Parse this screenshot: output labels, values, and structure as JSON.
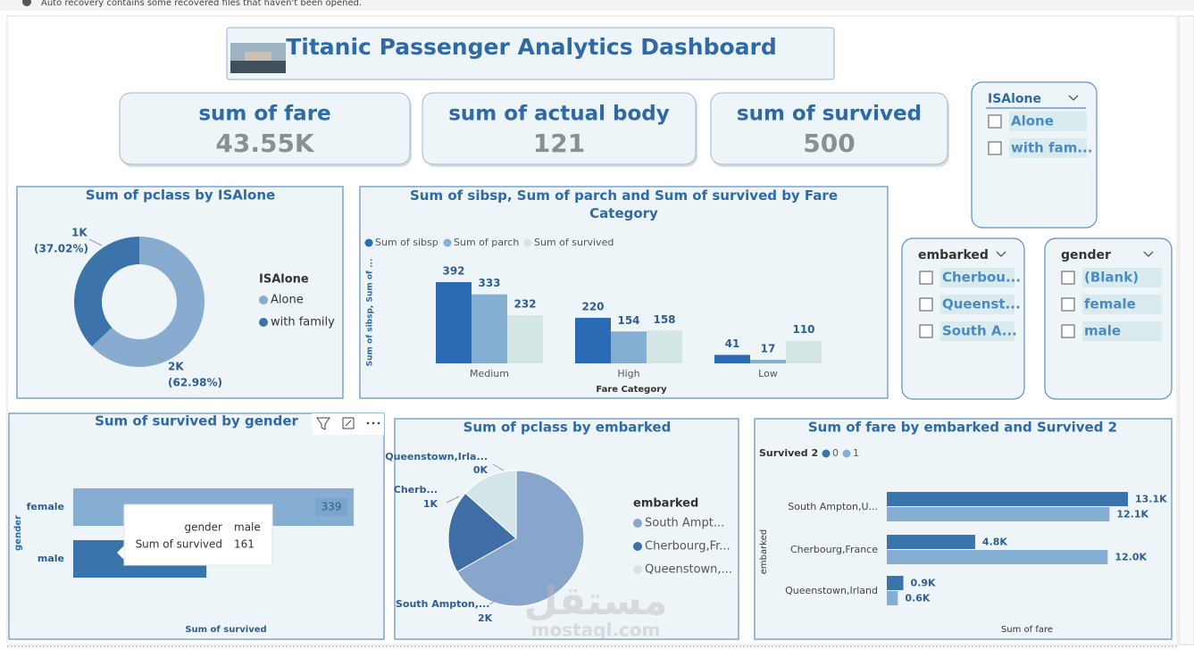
{
  "notification": "Auto recovery contains some recovered files that haven't been opened.",
  "header": {
    "title": "Titanic Passenger Analytics Dashboard"
  },
  "cards": [
    {
      "label": "sum of fare",
      "value": "43.55K"
    },
    {
      "label": "sum of actual body",
      "value": "121"
    },
    {
      "label": "sum of survived",
      "value": "500"
    }
  ],
  "slicers": [
    {
      "title": "ISAlone",
      "items": [
        "Alone",
        "with fam..."
      ]
    },
    {
      "title": "embarked",
      "items": [
        "Cherbou...",
        "Queenst...",
        "South A..."
      ]
    },
    {
      "title": "gender",
      "items": [
        "(Blank)",
        "female",
        "male"
      ]
    }
  ],
  "chart_data": [
    {
      "type": "donut",
      "title": "Sum of pclass by ISAlone",
      "legend_title": "ISAlone",
      "categories": [
        "Alone",
        "with family"
      ],
      "values": [
        62.98,
        37.02
      ],
      "value_labels": [
        "(62.98%)",
        "(37.02%)"
      ],
      "amount_labels": [
        "2K",
        "1K"
      ],
      "colors": [
        "#88acd0",
        "#3c73aa"
      ]
    },
    {
      "type": "bar",
      "title": "Sum of sibsp, Sum of parch and Sum of survived by Fare Category",
      "categories": [
        "Medium",
        "High",
        "Low"
      ],
      "series": [
        {
          "name": "Sum of sibsp",
          "color": "#2a6bb3",
          "values": [
            392,
            220,
            41
          ]
        },
        {
          "name": "Sum of parch",
          "color": "#85aed3",
          "values": [
            333,
            154,
            17
          ]
        },
        {
          "name": "Sum of survived",
          "color": "#d3e5e5",
          "values": [
            232,
            158,
            110
          ]
        }
      ],
      "ylim": [
        0,
        420
      ],
      "xlabel": "Fare Category",
      "ylabel": "Sum of sibsp, Sum of ..."
    },
    {
      "type": "hbar",
      "title": "Sum of survived by gender",
      "categories": [
        "female",
        "male"
      ],
      "values": [
        339,
        161
      ],
      "colors": [
        "#86aed2",
        "#3a74ad"
      ],
      "xlim": [
        0,
        340
      ],
      "xlabel": "Sum of survived",
      "ylabel": "gender"
    },
    {
      "type": "pie",
      "title": "Sum of pclass by embarked",
      "legend_title": "embarked",
      "categories": [
        "South Ampton,...",
        "Cherb...",
        "Queenstown,Irla..."
      ],
      "legend_labels": [
        "South Ampt...",
        "Cherbourg,Fr...",
        "Queenstown,..."
      ],
      "values": [
        1890,
        560,
        380
      ],
      "value_labels": [
        "2K",
        "1K",
        "0K"
      ],
      "colors": [
        "#88a6cb",
        "#3f6ea6",
        "#d3e5e8"
      ]
    },
    {
      "type": "hbar-grouped",
      "title": "Sum of fare by embarked and Survived 2",
      "legend_title": "Survived 2",
      "categories": [
        "South Ampton,U...",
        "Cherbourg,France",
        "Queenstown,Irland"
      ],
      "series": [
        {
          "name": "0",
          "color": "#3a74ad",
          "values": [
            13100,
            4800,
            900
          ],
          "value_labels": [
            "13.1K",
            "4.8K",
            "0.9K"
          ]
        },
        {
          "name": "1",
          "color": "#86aed2",
          "values": [
            12100,
            12000,
            600
          ],
          "value_labels": [
            "12.1K",
            "12.0K",
            "0.6K"
          ]
        }
      ],
      "xlim": [
        0,
        13100
      ],
      "xlabel": "Sum of fare",
      "ylabel": "embarked"
    }
  ],
  "watermark": {
    "logo": "مستقل",
    "site": "mostaql.com"
  }
}
